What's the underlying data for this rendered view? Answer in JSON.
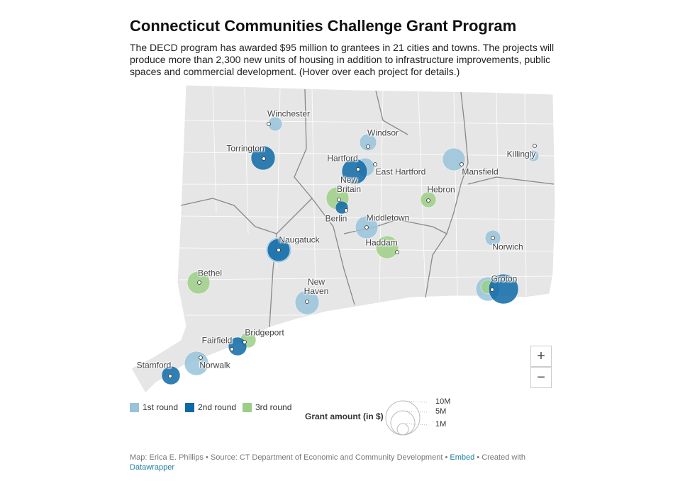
{
  "title": "Connecticut Communities Challenge Grant Program",
  "description": "The DECD program has awarded $95 million to grantees in 21 cities and towns. The projects will produce more than 2,300 new units of housing in addition to infrastructure improvements, public spaces and commercial development. (Hover over each project for details.)",
  "places": [
    "Winchester",
    "Windsor",
    "Torrington",
    "Killingly",
    "Hartford",
    "East Hartford",
    "Mansfield",
    "New Britain",
    "Hebron",
    "Berlin",
    "Middletown",
    "Haddam",
    "Naugatuck",
    "Norwich",
    "Bethel",
    "Groton",
    "New Haven",
    "Bridgeport",
    "Fairfield",
    "Stamford",
    "Norwalk"
  ],
  "legend": [
    {
      "label": "1st round",
      "color": "#98c3da"
    },
    {
      "label": "2nd round",
      "color": "#0d69a6"
    },
    {
      "label": "3rd round",
      "color": "#9ccf86"
    }
  ],
  "size_legend": {
    "title": "Grant amount (in $)",
    "labels": [
      "10M",
      "5M",
      "1M"
    ]
  },
  "zoom": [
    "+",
    "−"
  ],
  "footer": {
    "credit": "Map: Erica E. Phillips • Source: CT Department of Economic and Community Development •",
    "embed": "Embed",
    "created": "• Created with",
    "datawrapper": "Datawrapper"
  }
}
